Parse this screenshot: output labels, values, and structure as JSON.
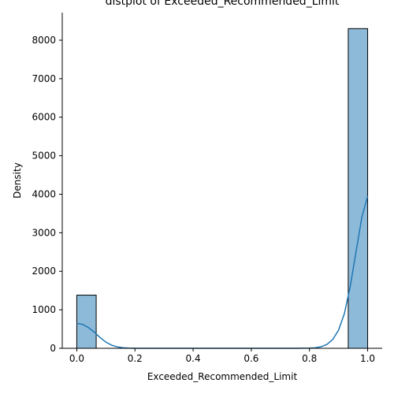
{
  "chart_data": {
    "type": "bar",
    "title": "distplot of Exceeded_Recommended_Limit",
    "xlabel": "Exceeded_Recommended_Limit",
    "ylabel": "Density",
    "xlim": [
      -0.05,
      1.05
    ],
    "ylim": [
      0,
      8716
    ],
    "xticks": [
      {
        "value": 0.0,
        "label": "0.0"
      },
      {
        "value": 0.2,
        "label": "0.2"
      },
      {
        "value": 0.4,
        "label": "0.4"
      },
      {
        "value": 0.6,
        "label": "0.6"
      },
      {
        "value": 0.8,
        "label": "0.8"
      },
      {
        "value": 1.0,
        "label": "1.0"
      }
    ],
    "yticks": [
      {
        "value": 0,
        "label": "0"
      },
      {
        "value": 1000,
        "label": "1000"
      },
      {
        "value": 2000,
        "label": "2000"
      },
      {
        "value": 3000,
        "label": "3000"
      },
      {
        "value": 4000,
        "label": "4000"
      },
      {
        "value": 5000,
        "label": "5000"
      },
      {
        "value": 6000,
        "label": "6000"
      },
      {
        "value": 7000,
        "label": "7000"
      },
      {
        "value": 8000,
        "label": "8000"
      }
    ],
    "bins": [
      {
        "x0": 0.0,
        "x1": 0.0667,
        "value": 1380
      },
      {
        "x0": 0.9333,
        "x1": 1.0,
        "value": 8300
      }
    ],
    "kde": [
      [
        0.0,
        650
      ],
      [
        0.02,
        620
      ],
      [
        0.04,
        540
      ],
      [
        0.06,
        420
      ],
      [
        0.08,
        280
      ],
      [
        0.1,
        160
      ],
      [
        0.12,
        80
      ],
      [
        0.14,
        35
      ],
      [
        0.16,
        12
      ],
      [
        0.18,
        4
      ],
      [
        0.2,
        1
      ],
      [
        0.3,
        0
      ],
      [
        0.5,
        0
      ],
      [
        0.7,
        0
      ],
      [
        0.76,
        1
      ],
      [
        0.8,
        5
      ],
      [
        0.82,
        14
      ],
      [
        0.84,
        40
      ],
      [
        0.86,
        100
      ],
      [
        0.88,
        230
      ],
      [
        0.9,
        470
      ],
      [
        0.92,
        900
      ],
      [
        0.94,
        1600
      ],
      [
        0.96,
        2500
      ],
      [
        0.98,
        3400
      ],
      [
        1.0,
        3950
      ]
    ],
    "grid": false,
    "colors": {
      "bar_fill": "#8ebad9",
      "bar_edge": "#000000",
      "kde_line": "#1f77b4"
    }
  }
}
